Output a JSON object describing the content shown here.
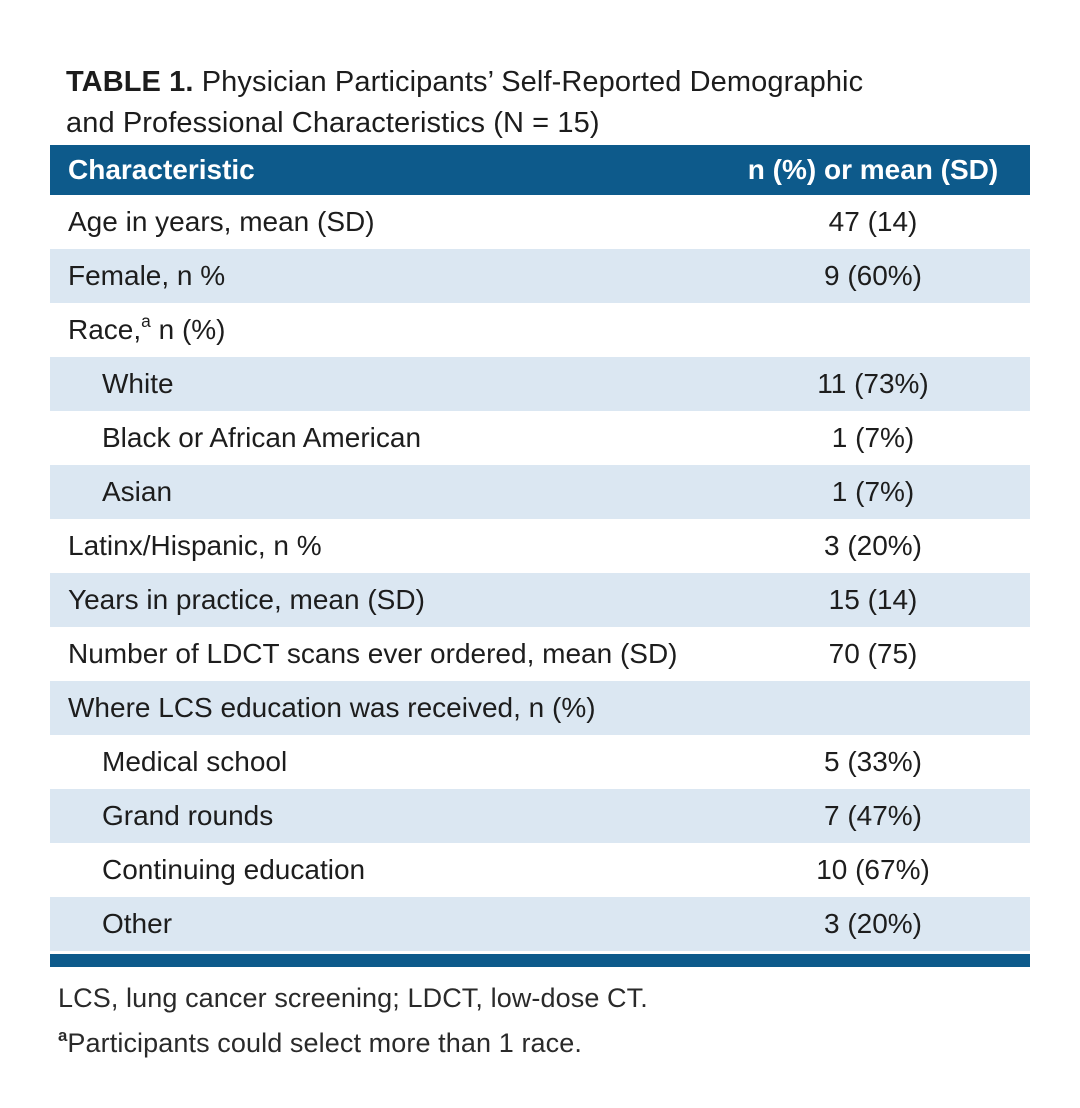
{
  "title": {
    "label": "TABLE 1.",
    "line1": "Physician Participants’ Self-Reported Demographic",
    "line2": "and Professional Characteristics (N = 15)"
  },
  "table": {
    "header": {
      "characteristic": "Characteristic",
      "value": "n (%) or mean (SD)"
    },
    "rows": [
      {
        "label": "Age in years, mean (SD)",
        "value": "47 (14)",
        "indent": false
      },
      {
        "label": "Female, n %",
        "value": "9 (60%)",
        "indent": false
      },
      {
        "label": "Race,",
        "sup": "a",
        "label_rest": " n (%)",
        "value": "",
        "indent": false
      },
      {
        "label": "White",
        "value": "11 (73%)",
        "indent": true
      },
      {
        "label": "Black or African American",
        "value": "1 (7%)",
        "indent": true
      },
      {
        "label": "Asian",
        "value": "1 (7%)",
        "indent": true
      },
      {
        "label": "Latinx/Hispanic, n %",
        "value": "3 (20%)",
        "indent": false
      },
      {
        "label": "Years in practice, mean (SD)",
        "value": "15 (14)",
        "indent": false
      },
      {
        "label": "Number of LDCT scans ever ordered, mean (SD)",
        "value": "70 (75)",
        "indent": false
      },
      {
        "label": "Where LCS education was received, n (%)",
        "value": "",
        "indent": false
      },
      {
        "label": "Medical school",
        "value": "5 (33%)",
        "indent": true
      },
      {
        "label": "Grand rounds",
        "value": "7 (47%)",
        "indent": true
      },
      {
        "label": "Continuing education",
        "value": "10 (67%)",
        "indent": true
      },
      {
        "label": "Other",
        "value": "3 (20%)",
        "indent": true
      }
    ]
  },
  "footnotes": [
    {
      "marker": "",
      "text": "LCS, lung cancer screening; LDCT, low-dose CT."
    },
    {
      "marker": "a",
      "text": "Participants could select more than 1 race."
    }
  ],
  "colors": {
    "header_bg": "#0d5a8b",
    "row_alt_bg": "#dbe7f2",
    "bottom_rule": "#0d5a8b",
    "header_text": "#ffffff",
    "body_text": "#1d1d1d"
  }
}
